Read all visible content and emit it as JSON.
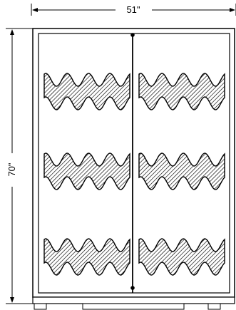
{
  "dimensions": {
    "width_label": "51\"",
    "height_label": "70\""
  },
  "cabinet": {
    "doors": 2,
    "wave_shelf_rows": 3,
    "colors": {
      "line": "#000000",
      "background": "#ffffff",
      "hatch": "#000000"
    }
  }
}
